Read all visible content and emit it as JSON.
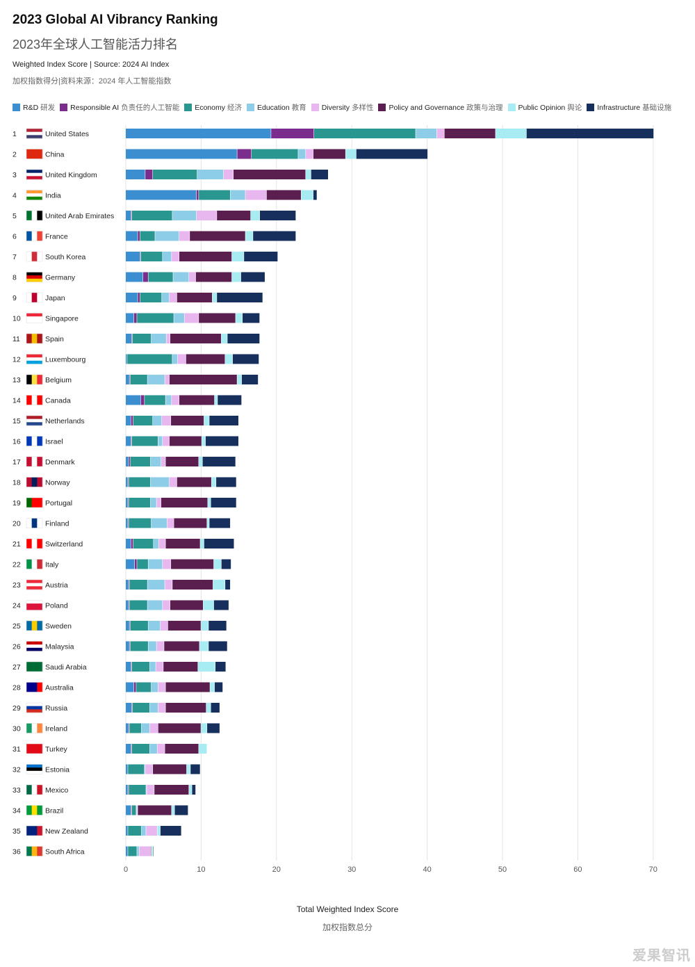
{
  "chart_data": {
    "type": "bar",
    "orientation": "horizontal",
    "stacked": true,
    "title": "2023 Global AI Vibrancy Ranking",
    "subtitle": "2023年全球人工智能活力排名",
    "source_en": "Weighted Index Score | Source: 2024 AI Index",
    "source_zh": "加权指数得分|资料来源：2024 年人工智能指数",
    "xlabel": "Total Weighted Index Score",
    "xlabel_zh": "加权指数总分",
    "xlim": [
      0,
      70
    ],
    "xticks": [
      0,
      10,
      20,
      30,
      40,
      50,
      60,
      70
    ],
    "grid": true,
    "legend_position": "top",
    "categories": [
      "United States",
      "China",
      "United Kingdom",
      "India",
      "United Arab Emirates",
      "France",
      "South Korea",
      "Germany",
      "Japan",
      "Singapore",
      "Spain",
      "Luxembourg",
      "Belgium",
      "Canada",
      "Netherlands",
      "Israel",
      "Denmark",
      "Norway",
      "Portugal",
      "Finland",
      "Switzerland",
      "Italy",
      "Austria",
      "Poland",
      "Sweden",
      "Malaysia",
      "Saudi Arabia",
      "Australia",
      "Russia",
      "Ireland",
      "Turkey",
      "Estonia",
      "Mexico",
      "Brazil",
      "New Zealand",
      "South Africa"
    ],
    "ranks": [
      "1",
      "2",
      "3",
      "4",
      "5",
      "6",
      "7",
      "8",
      "9",
      "10",
      "11",
      "12",
      "13",
      "14",
      "15",
      "16",
      "17",
      "18",
      "19",
      "20",
      "21",
      "22",
      "23",
      "24",
      "25",
      "26",
      "27",
      "28",
      "29",
      "30",
      "31",
      "32",
      "33",
      "34",
      "35",
      "36"
    ],
    "series": [
      {
        "name": "R&D",
        "name_zh": "研发",
        "color": "#3b8fd0",
        "values": [
          19.3,
          14.8,
          2.6,
          9.4,
          0.7,
          1.6,
          1.9,
          2.3,
          1.6,
          1.1,
          0.8,
          0.2,
          0.5,
          2.0,
          0.7,
          0.7,
          0.4,
          0.3,
          0.3,
          0.3,
          0.7,
          1.2,
          0.4,
          0.4,
          0.5,
          0.5,
          0.7,
          1.1,
          0.8,
          0.4,
          0.7,
          0.3,
          0.3,
          0.7,
          0.3,
          0.3
        ]
      },
      {
        "name": "Responsible AI",
        "name_zh": "负责任的人工智能",
        "color": "#7b2d8e",
        "values": [
          5.7,
          1.9,
          1.0,
          0.3,
          0.1,
          0.3,
          0.1,
          0.7,
          0.3,
          0.4,
          0.1,
          0.0,
          0.1,
          0.5,
          0.3,
          0.1,
          0.2,
          0.1,
          0.1,
          0.1,
          0.3,
          0.3,
          0.1,
          0.1,
          0.1,
          0.1,
          0.1,
          0.3,
          0.1,
          0.1,
          0.1,
          0.0,
          0.1,
          0.1,
          0.0,
          0.0
        ]
      },
      {
        "name": "Economy",
        "name_zh": "经济",
        "color": "#2a9690",
        "values": [
          13.5,
          6.2,
          5.9,
          4.2,
          5.4,
          2.0,
          2.9,
          3.3,
          2.9,
          4.9,
          2.5,
          6.0,
          2.3,
          2.8,
          2.6,
          3.5,
          2.7,
          2.9,
          2.9,
          3.0,
          2.7,
          1.5,
          2.4,
          2.4,
          2.4,
          2.4,
          2.4,
          2.0,
          2.3,
          1.6,
          2.4,
          2.2,
          2.3,
          0.6,
          1.8,
          1.2
        ]
      },
      {
        "name": "Education",
        "name_zh": "教育",
        "color": "#8ecde8",
        "values": [
          2.8,
          1.0,
          3.5,
          2.0,
          3.2,
          3.2,
          1.2,
          2.1,
          1.0,
          1.4,
          2.0,
          0.7,
          2.3,
          0.8,
          1.2,
          0.6,
          1.4,
          2.5,
          0.8,
          2.1,
          0.7,
          1.9,
          2.3,
          2.0,
          1.6,
          1.1,
          0.8,
          0.9,
          1.1,
          1.1,
          1.0,
          0.1,
          0.1,
          0.1,
          0.6,
          0.3
        ]
      },
      {
        "name": "Diversity",
        "name_zh": "多样性",
        "color": "#e8b7ef",
        "values": [
          1.0,
          1.0,
          1.3,
          2.8,
          2.7,
          1.4,
          1.0,
          0.9,
          1.0,
          1.9,
          0.5,
          1.1,
          0.6,
          1.0,
          1.2,
          0.9,
          0.6,
          1.0,
          0.6,
          0.9,
          0.9,
          1.1,
          1.0,
          1.0,
          1.0,
          1.0,
          1.0,
          1.0,
          1.0,
          1.1,
          1.0,
          1.0,
          1.0,
          0.1,
          1.5,
          1.5
        ]
      },
      {
        "name": "Policy and Governance",
        "name_zh": "政策与治理",
        "color": "#5b1f4f",
        "values": [
          6.8,
          4.3,
          9.6,
          4.6,
          4.5,
          7.4,
          7.0,
          4.8,
          4.7,
          4.9,
          6.8,
          5.2,
          9.0,
          4.7,
          4.4,
          4.3,
          4.4,
          4.6,
          6.2,
          4.4,
          4.6,
          5.7,
          5.4,
          4.4,
          4.4,
          4.7,
          4.6,
          5.9,
          5.4,
          5.7,
          4.5,
          4.5,
          4.6,
          4.5,
          0.0,
          0.1
        ]
      },
      {
        "name": "Public Opinion",
        "name_zh": "舆论",
        "color": "#a6ecf2",
        "values": [
          4.1,
          1.4,
          0.7,
          1.6,
          1.2,
          1.0,
          1.6,
          1.2,
          0.6,
          0.9,
          0.8,
          1.0,
          0.6,
          0.4,
          0.7,
          0.5,
          0.5,
          0.6,
          0.4,
          0.3,
          0.5,
          1.0,
          1.6,
          1.4,
          1.0,
          1.2,
          2.3,
          0.6,
          0.6,
          0.8,
          1.1,
          0.5,
          0.4,
          0.4,
          0.4,
          0.2
        ]
      },
      {
        "name": "Infrastructure",
        "name_zh": "基础设施",
        "color": "#172f5c",
        "values": [
          16.9,
          9.5,
          2.3,
          0.5,
          4.8,
          5.7,
          4.5,
          3.2,
          6.1,
          2.3,
          4.3,
          3.5,
          2.2,
          3.2,
          3.9,
          4.4,
          4.4,
          2.7,
          3.4,
          2.8,
          4.0,
          1.3,
          0.7,
          2.0,
          2.4,
          2.5,
          1.4,
          1.1,
          1.2,
          1.7,
          0.0,
          1.3,
          0.5,
          1.8,
          2.8,
          0.1
        ]
      }
    ]
  },
  "watermark": "爱果智讯"
}
